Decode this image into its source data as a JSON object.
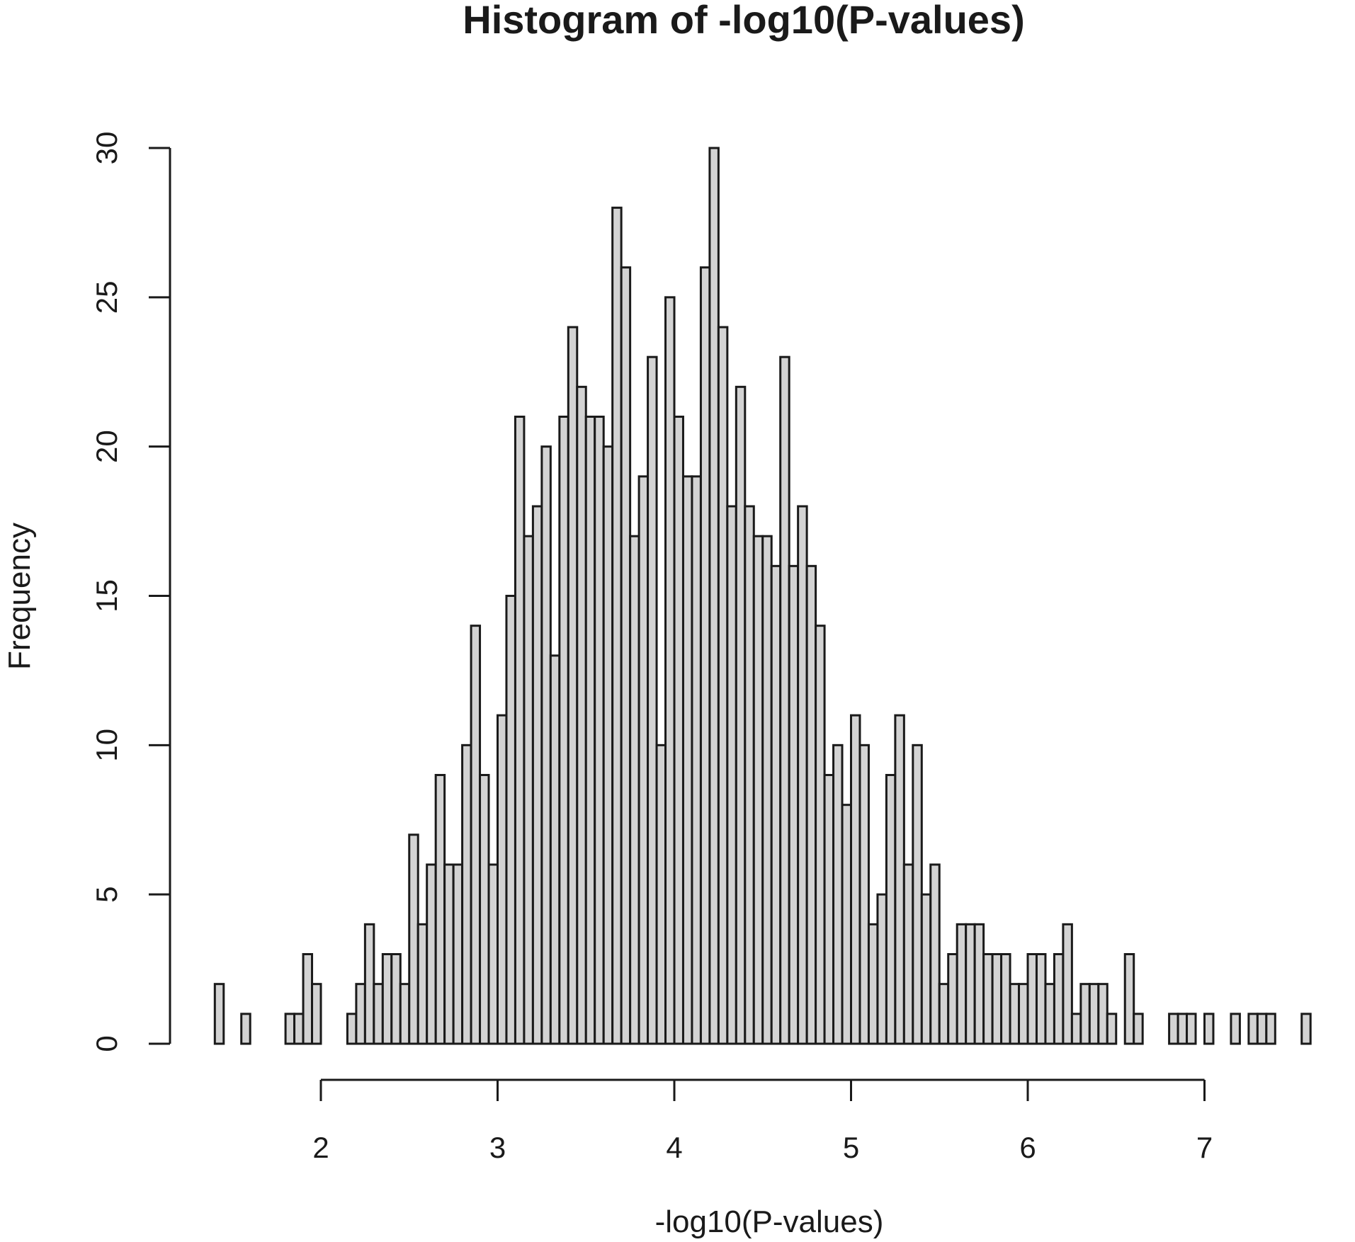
{
  "chart_data": {
    "type": "bar",
    "title": "Histogram of -log10(P-values)",
    "xlabel": "-log10(P-values)",
    "ylabel": "Frequency",
    "bin_width": 0.05,
    "bin_start": 1.4,
    "xlim": [
      1.4,
      7.7
    ],
    "ylim": [
      0,
      30
    ],
    "x_ticks": [
      2,
      3,
      4,
      5,
      6,
      7
    ],
    "y_ticks": [
      0,
      5,
      10,
      15,
      20,
      25,
      30
    ],
    "bar_fill": "#d3d3d3",
    "bar_stroke": "#1a1a1a",
    "values": [
      2,
      0,
      0,
      1,
      0,
      0,
      0,
      0,
      1,
      1,
      3,
      2,
      0,
      0,
      0,
      1,
      2,
      4,
      2,
      3,
      3,
      2,
      7,
      4,
      6,
      9,
      6,
      6,
      10,
      14,
      9,
      6,
      11,
      15,
      21,
      17,
      18,
      20,
      13,
      21,
      24,
      22,
      21,
      21,
      20,
      28,
      26,
      17,
      19,
      23,
      10,
      25,
      21,
      19,
      19,
      26,
      30,
      24,
      18,
      22,
      18,
      17,
      17,
      16,
      23,
      16,
      18,
      16,
      14,
      9,
      10,
      8,
      11,
      10,
      4,
      5,
      9,
      11,
      6,
      10,
      5,
      6,
      2,
      3,
      4,
      4,
      4,
      3,
      3,
      3,
      2,
      2,
      3,
      3,
      2,
      3,
      4,
      1,
      2,
      2,
      2,
      1,
      0,
      3,
      1,
      0,
      0,
      0,
      1,
      1,
      1,
      0,
      1,
      0,
      0,
      1,
      0,
      1,
      1,
      1,
      0,
      0,
      0,
      1
    ]
  }
}
